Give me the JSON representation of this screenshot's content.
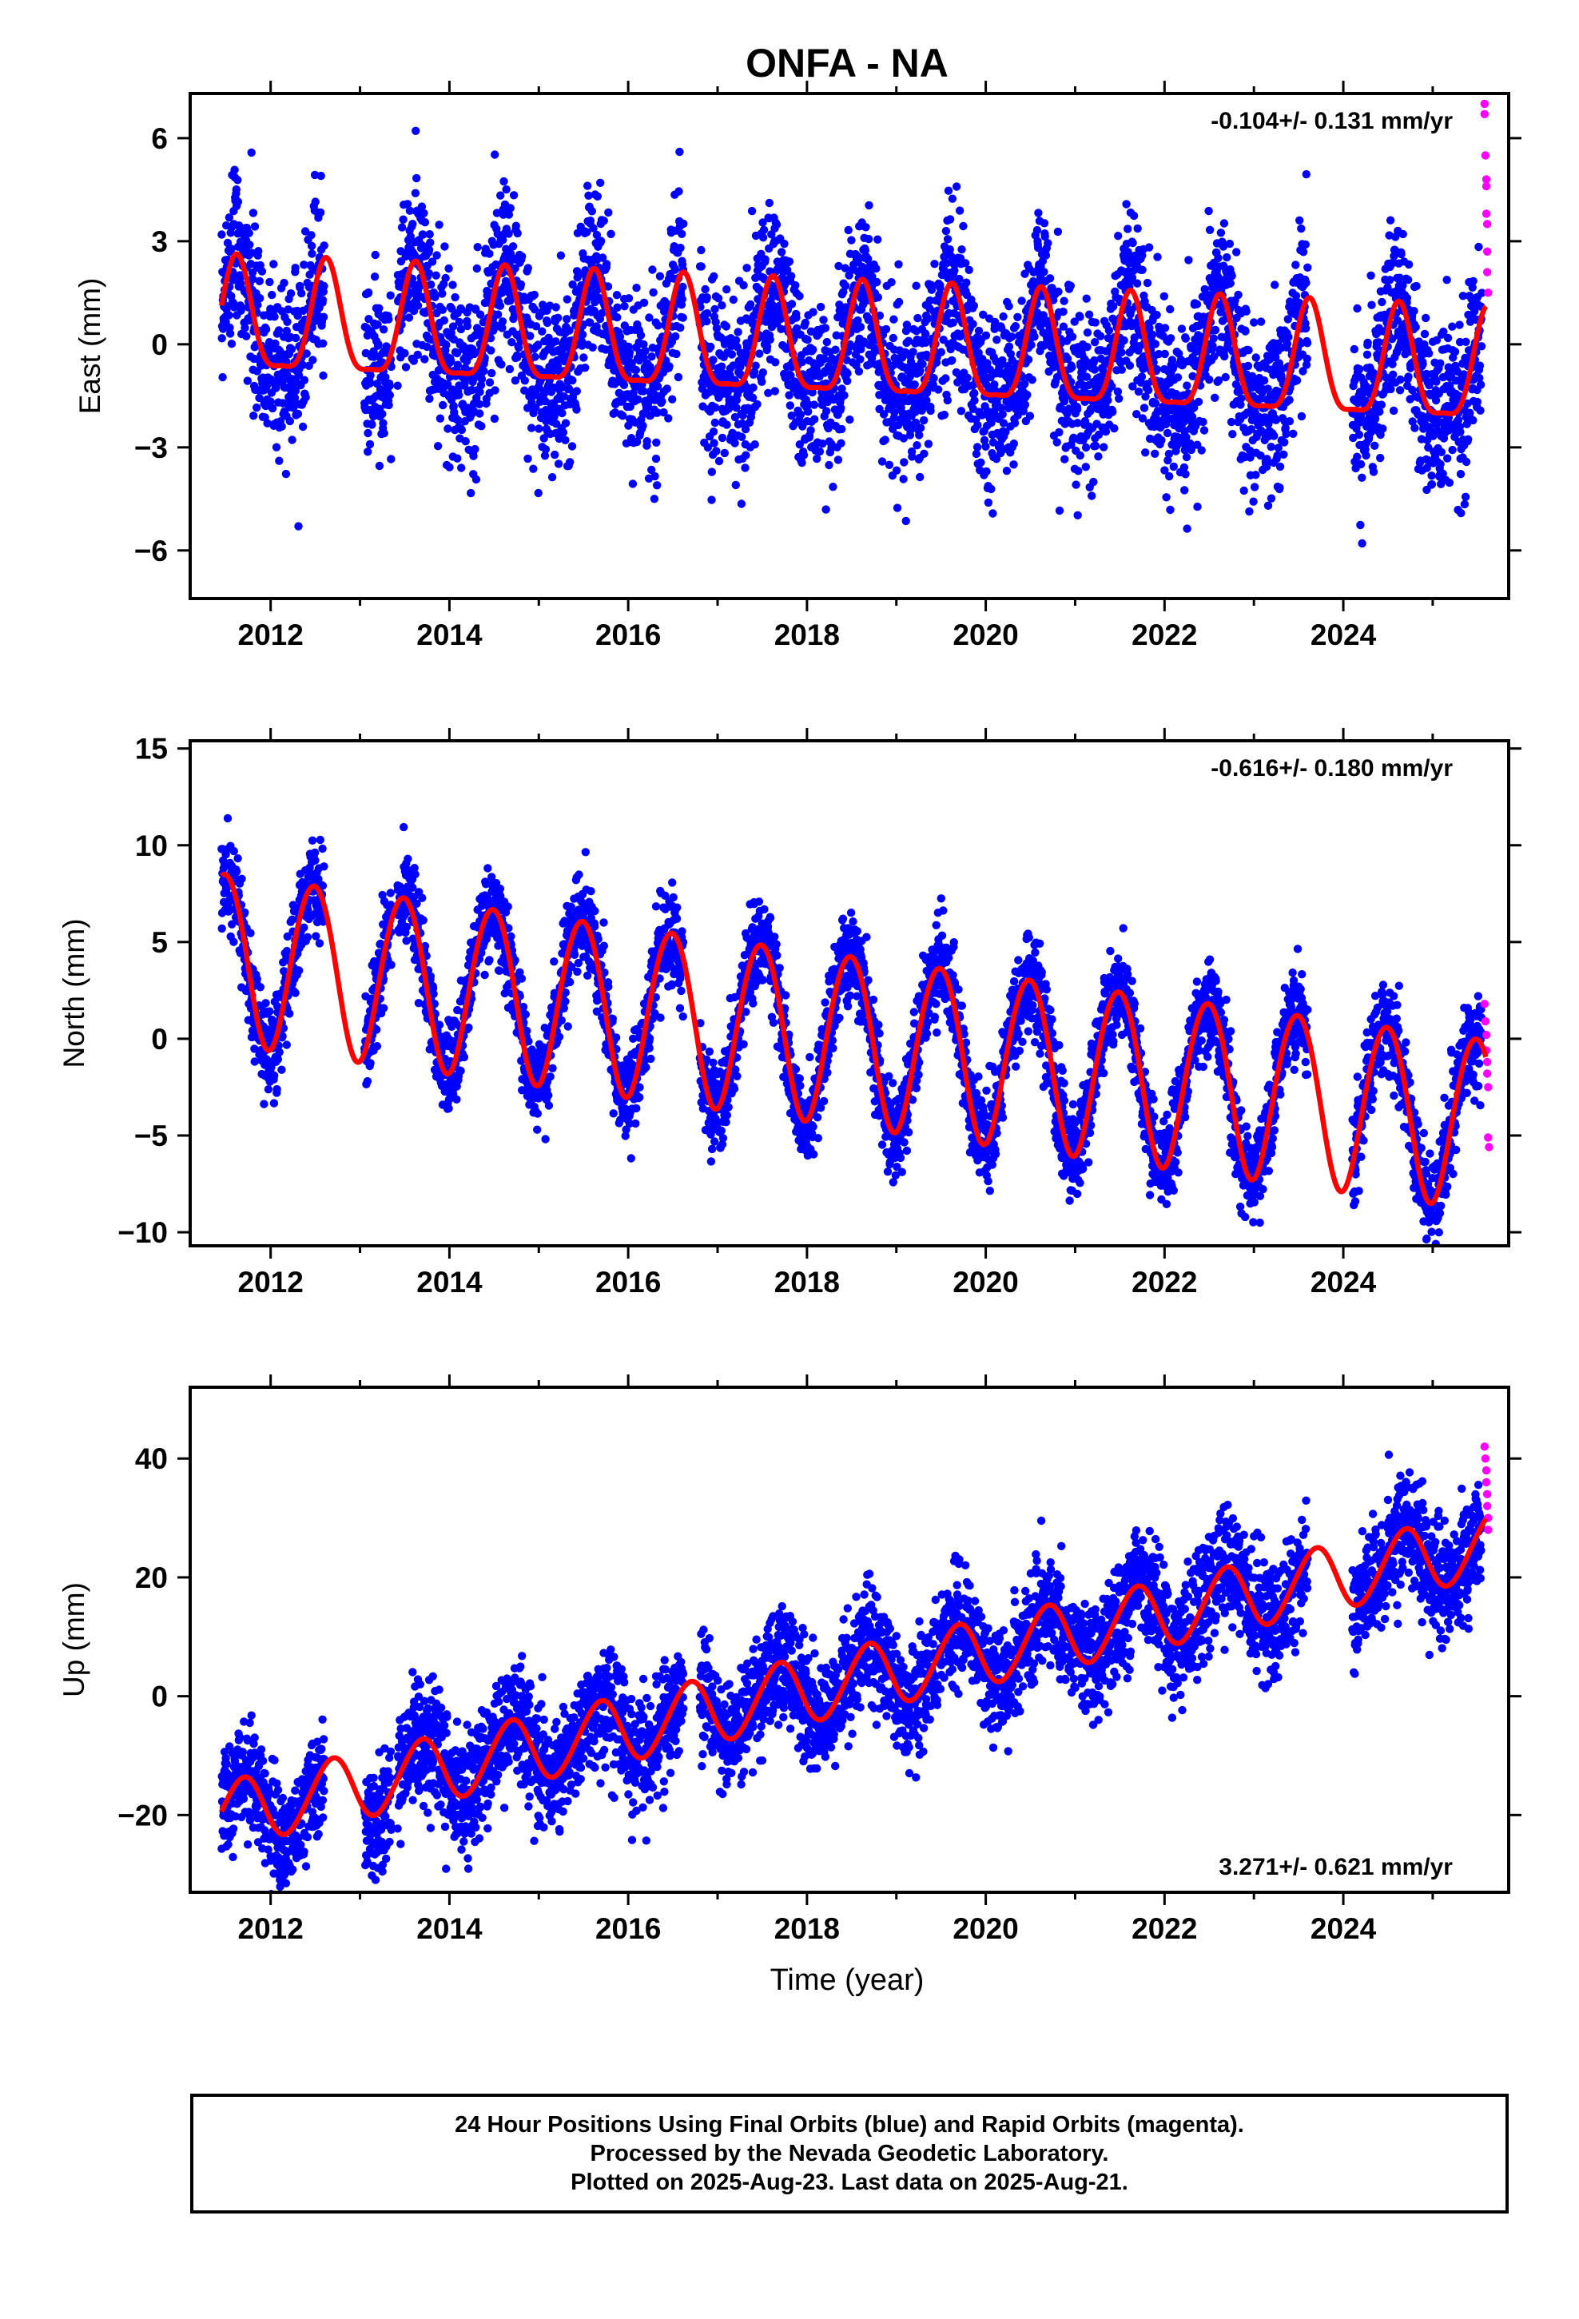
{
  "title": "ONFA - NA",
  "xlabel": "Time (year)",
  "colors": {
    "final": "#0000ff",
    "rapid": "#ff00ff",
    "model": "#ff0000",
    "axis": "#000000"
  },
  "caption": {
    "line1": "24 Hour Positions Using Final Orbits (blue) and Rapid Orbits (magenta).",
    "line2": "Processed by the Nevada Geodetic Laboratory.",
    "line3": "Plotted on 2025-Aug-23. Last data on 2025-Aug-21."
  },
  "chart_data": [
    {
      "type": "scatter",
      "component": "East",
      "ylabel": "East (mm)",
      "rate_text": "-0.104+/- 0.131 mm/yr",
      "rate_placement": "top-right",
      "xlim": [
        2011.1,
        2025.85
      ],
      "ylim": [
        -7.4,
        7.3
      ],
      "x_ticks": [
        2012,
        2014,
        2016,
        2018,
        2020,
        2022,
        2024
      ],
      "y_ticks": [
        -6,
        -3,
        0,
        3,
        6
      ],
      "y_tick_labels": [
        "−6",
        "−3",
        "0",
        "3",
        "6"
      ],
      "trend": {
        "t0": 2011.45,
        "t1": 2025.6,
        "v0": 0.6,
        "v1": -0.9
      },
      "annual": {
        "amplitude": 1.6,
        "peak_phase": 0.62
      },
      "semiannual": {
        "amplitude": 0.45,
        "peak_phase": 0.12
      },
      "scatter_sd": 1.25,
      "data_gaps": [
        [
          2012.6,
          2013.05
        ],
        [
          2013.35,
          2013.42
        ],
        [
          2016.62,
          2016.8
        ],
        [
          2023.6,
          2024.1
        ]
      ],
      "model_start": 2011.45,
      "model_end": 2025.6,
      "final_end": 2025.55,
      "rapid_points": [
        [
          2025.58,
          7.0
        ],
        [
          2025.58,
          6.7
        ],
        [
          2025.59,
          5.5
        ],
        [
          2025.6,
          4.8
        ],
        [
          2025.6,
          4.6
        ],
        [
          2025.6,
          3.8
        ],
        [
          2025.61,
          3.5
        ],
        [
          2025.61,
          2.7
        ],
        [
          2025.61,
          2.1
        ],
        [
          2025.62,
          1.5
        ]
      ]
    },
    {
      "type": "scatter",
      "component": "North",
      "ylabel": "North (mm)",
      "rate_text": "-0.616+/- 0.180 mm/yr",
      "rate_placement": "top-right",
      "xlim": [
        2011.1,
        2025.85
      ],
      "ylim": [
        -10.7,
        15.4
      ],
      "x_ticks": [
        2012,
        2014,
        2016,
        2018,
        2020,
        2022,
        2024
      ],
      "y_ticks": [
        -10,
        -5,
        0,
        5,
        10,
        15
      ],
      "y_tick_labels": [
        "−10",
        "−5",
        "0",
        "5",
        "10",
        "15"
      ],
      "trend": {
        "t0": 2011.45,
        "t1": 2025.6,
        "v0": 4.3,
        "v1": -4.3
      },
      "annual": {
        "amplitude": 4.4,
        "peak_phase": 0.48
      },
      "semiannual": {
        "amplitude": 0.2,
        "peak_phase": 0.2
      },
      "scatter_sd": 1.2,
      "data_gaps": [
        [
          2012.6,
          2013.05
        ],
        [
          2013.35,
          2013.42
        ],
        [
          2016.62,
          2016.8
        ],
        [
          2023.6,
          2024.1
        ]
      ],
      "model_start": 2011.45,
      "model_end": 2025.6,
      "final_end": 2025.55,
      "rapid_points": [
        [
          2025.58,
          1.8
        ],
        [
          2025.59,
          0.9
        ],
        [
          2025.6,
          0.2
        ],
        [
          2025.6,
          -0.6
        ],
        [
          2025.61,
          -1.2
        ],
        [
          2025.61,
          -1.8
        ],
        [
          2025.62,
          -2.5
        ],
        [
          2025.62,
          -5.1
        ],
        [
          2025.63,
          -5.6
        ]
      ]
    },
    {
      "type": "scatter",
      "component": "Up",
      "ylabel": "Up (mm)",
      "rate_text": "3.271+/- 0.621 mm/yr",
      "rate_placement": "bottom-right",
      "xlim": [
        2011.1,
        2025.85
      ],
      "ylim": [
        -33,
        52
      ],
      "x_ticks": [
        2012,
        2014,
        2016,
        2018,
        2020,
        2022,
        2024
      ],
      "y_ticks": [
        -20,
        0,
        20,
        40
      ],
      "y_tick_labels": [
        "−20",
        "0",
        "20",
        "40"
      ],
      "trend": {
        "t0": 2011.45,
        "t1": 2025.6,
        "v0": -20,
        "v1": 25.5
      },
      "annual": {
        "amplitude": 5.5,
        "peak_phase": 0.68
      },
      "semiannual": {
        "amplitude": 0.4,
        "peak_phase": 0.3
      },
      "scatter_sd": 4.8,
      "data_gaps": [
        [
          2012.6,
          2013.05
        ],
        [
          2013.35,
          2013.42
        ],
        [
          2016.62,
          2016.8
        ],
        [
          2023.6,
          2024.1
        ]
      ],
      "model_start": 2011.45,
      "model_end": 2025.6,
      "final_end": 2025.55,
      "rapid_points": [
        [
          2025.58,
          42
        ],
        [
          2025.59,
          40
        ],
        [
          2025.6,
          38
        ],
        [
          2025.6,
          36
        ],
        [
          2025.61,
          34
        ],
        [
          2025.61,
          32
        ],
        [
          2025.62,
          30
        ],
        [
          2025.62,
          28
        ]
      ]
    }
  ]
}
